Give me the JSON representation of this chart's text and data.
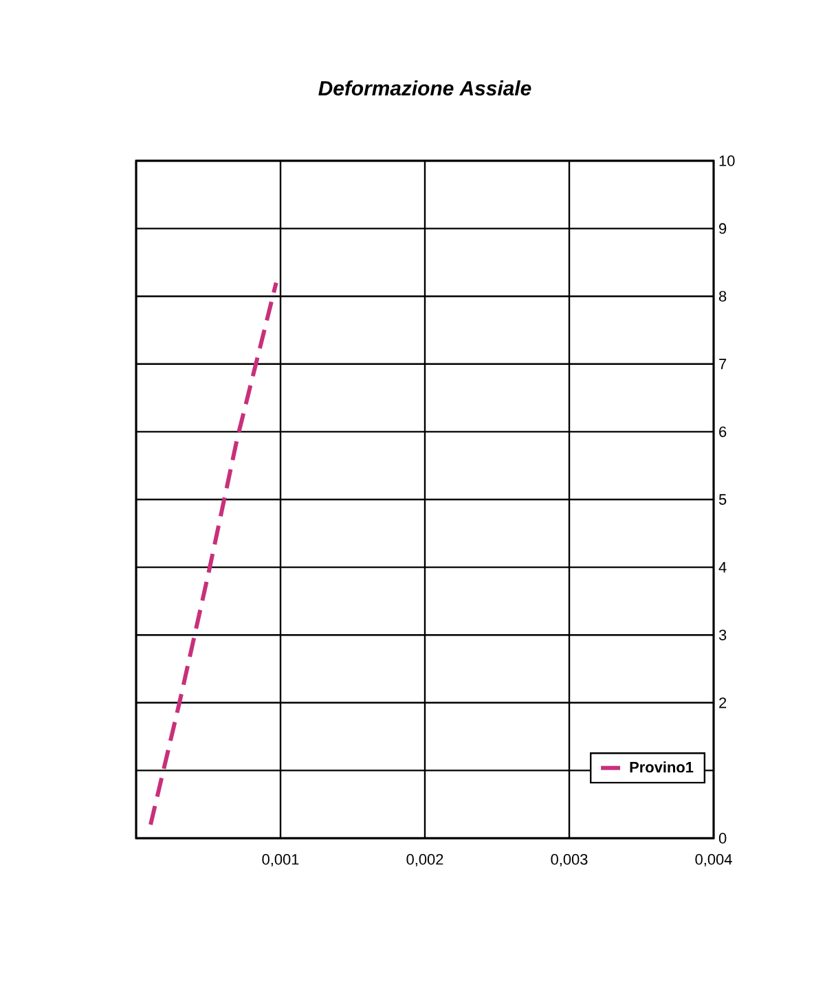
{
  "chart_data": {
    "type": "line",
    "title": "Deformazione Assiale",
    "x": [
      0.0001,
      0.0003,
      0.0005,
      0.0007,
      0.0009,
      0.00097
    ],
    "series": [
      {
        "name": "Provino1",
        "color": "#c8307a",
        "values": [
          0.2,
          2.0,
          3.9,
          5.9,
          7.6,
          8.2
        ]
      }
    ],
    "xlim": [
      0,
      0.004
    ],
    "ylim": [
      0,
      10
    ],
    "xticks": [
      {
        "value": 0,
        "label": null
      },
      {
        "value": 0.001,
        "label": "0,001"
      },
      {
        "value": 0.002,
        "label": "0,002"
      },
      {
        "value": 0.003,
        "label": "0,003"
      },
      {
        "value": 0.004,
        "label": "0,004"
      }
    ],
    "yticks": [
      0,
      {
        "value": 1,
        "label": null
      },
      2,
      3,
      4,
      5,
      6,
      7,
      8,
      9,
      10
    ],
    "grid": true,
    "legend": "bottom right",
    "line_style": "dashed",
    "marker": "none"
  }
}
